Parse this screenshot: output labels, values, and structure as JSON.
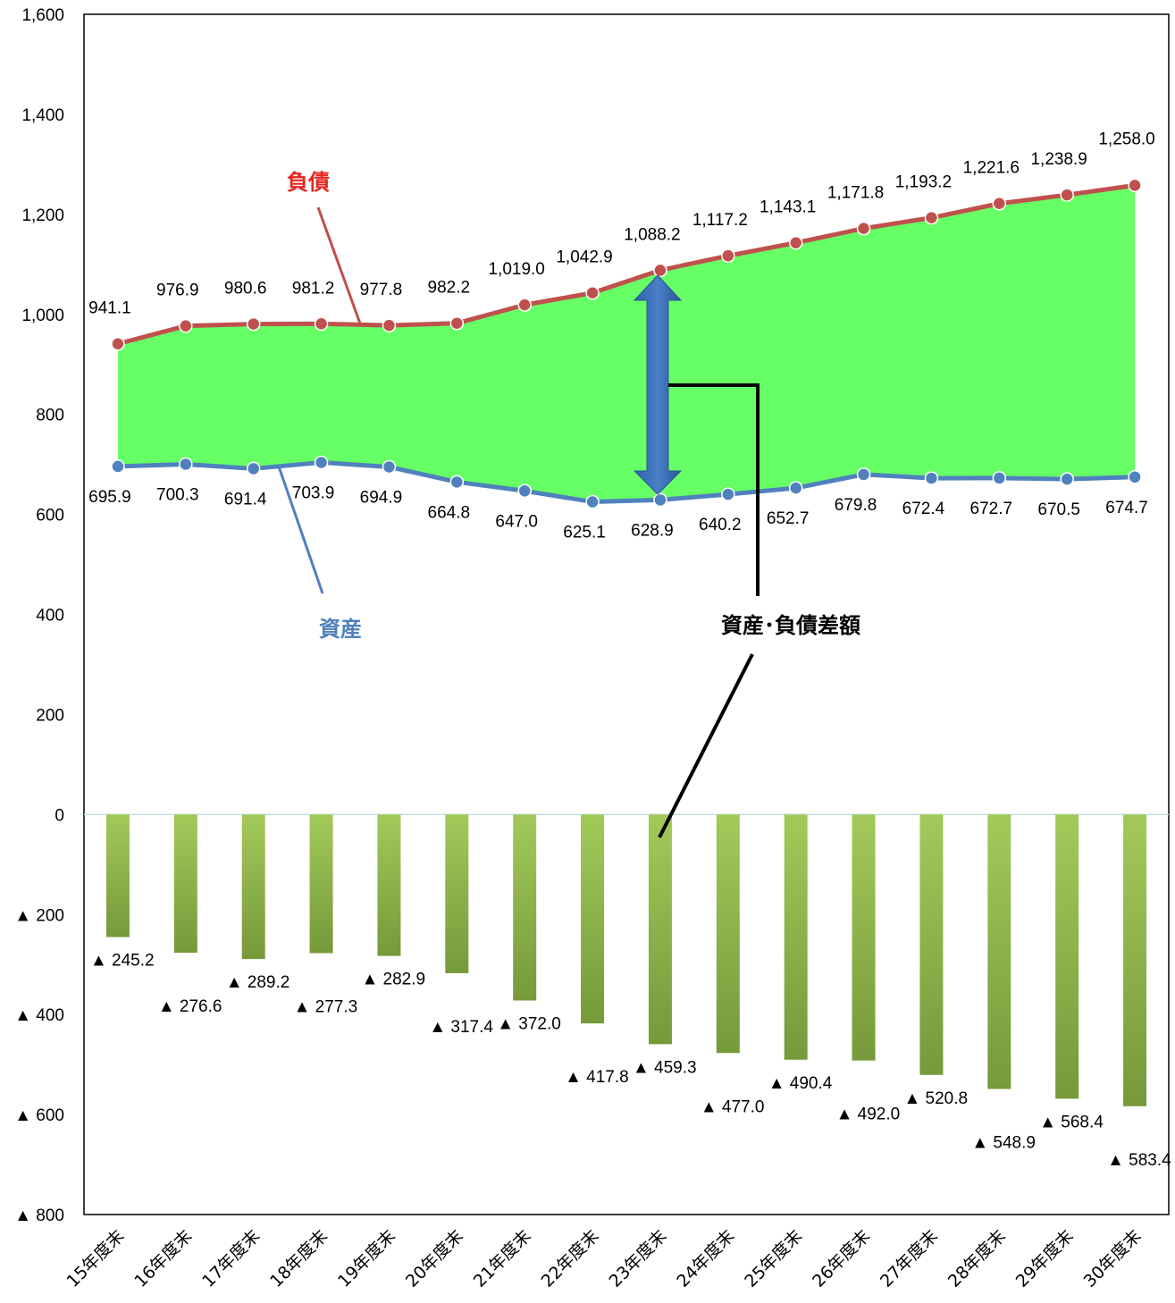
{
  "chart_data": {
    "type": "line",
    "categories": [
      "15年度末",
      "16年度末",
      "17年度末",
      "18年度末",
      "19年度末",
      "20年度末",
      "21年度末",
      "22年度末",
      "23年度末",
      "24年度末",
      "25年度末",
      "26年度末",
      "27年度末",
      "28年度末",
      "29年度末",
      "30年度末"
    ],
    "series": [
      {
        "name": "負債",
        "color": "#c0504d",
        "values": [
          941.1,
          976.9,
          980.6,
          981.2,
          977.8,
          982.2,
          1019.0,
          1042.9,
          1088.2,
          1117.2,
          1143.1,
          1171.8,
          1193.2,
          1221.6,
          1238.9,
          1258.0
        ],
        "labels": [
          "941.1",
          "976.9",
          "980.6",
          "981.2",
          "977.8",
          "982.2",
          "1,019.0",
          "1,042.9",
          "1,088.2",
          "1,117.2",
          "1,143.1",
          "1,171.8",
          "1,193.2",
          "1,221.6",
          "1,238.9",
          "1,258.0"
        ]
      },
      {
        "name": "資産",
        "color": "#4f81bd",
        "values": [
          695.9,
          700.3,
          691.4,
          703.9,
          694.9,
          664.8,
          647.0,
          625.1,
          628.9,
          640.2,
          652.7,
          679.8,
          672.4,
          672.7,
          670.5,
          674.7
        ],
        "labels": [
          "695.9",
          "700.3",
          "691.4",
          "703.9",
          "694.9",
          "664.8",
          "647.0",
          "625.1",
          "628.9",
          "640.2",
          "652.7",
          "679.8",
          "672.4",
          "672.7",
          "670.5",
          "674.7"
        ]
      }
    ],
    "difference": {
      "name": "資産・負債差額",
      "type": "bar",
      "color": "#8db33e",
      "values": [
        -245.2,
        -276.6,
        -289.2,
        -277.3,
        -282.9,
        -317.4,
        -372.0,
        -417.8,
        -459.3,
        -477.0,
        -490.4,
        -492.0,
        -520.8,
        -548.9,
        -568.4,
        -583.4
      ],
      "labels": [
        "▲ 245.2",
        "▲ 276.6",
        "▲ 289.2",
        "▲ 277.3",
        "▲ 282.9",
        "▲ 317.4",
        "▲ 372.0",
        "▲ 417.8",
        "▲ 459.3",
        "▲ 477.0",
        "▲ 490.4",
        "▲ 492.0",
        "▲ 520.8",
        "▲ 548.9",
        "▲ 568.4",
        "▲ 583.4"
      ]
    },
    "gap_fill_color": "#66ff66",
    "ylim": [
      -800,
      1600
    ],
    "yticks": [
      1600,
      1400,
      1200,
      1000,
      800,
      600,
      400,
      200,
      0,
      -200,
      -400,
      -600,
      -800
    ],
    "ytick_labels": [
      "1,600",
      "1,400",
      "1,200",
      "1,000",
      "800",
      "600",
      "400",
      "200",
      "0",
      "▲ 200",
      "▲ 400",
      "▲ 600",
      "▲ 800"
    ],
    "grid": false,
    "title": "",
    "xlabel": "",
    "ylabel": ""
  },
  "annotations": {
    "liability_label": "負債",
    "asset_label": "資産",
    "difference_label": "資産･負債差額"
  }
}
